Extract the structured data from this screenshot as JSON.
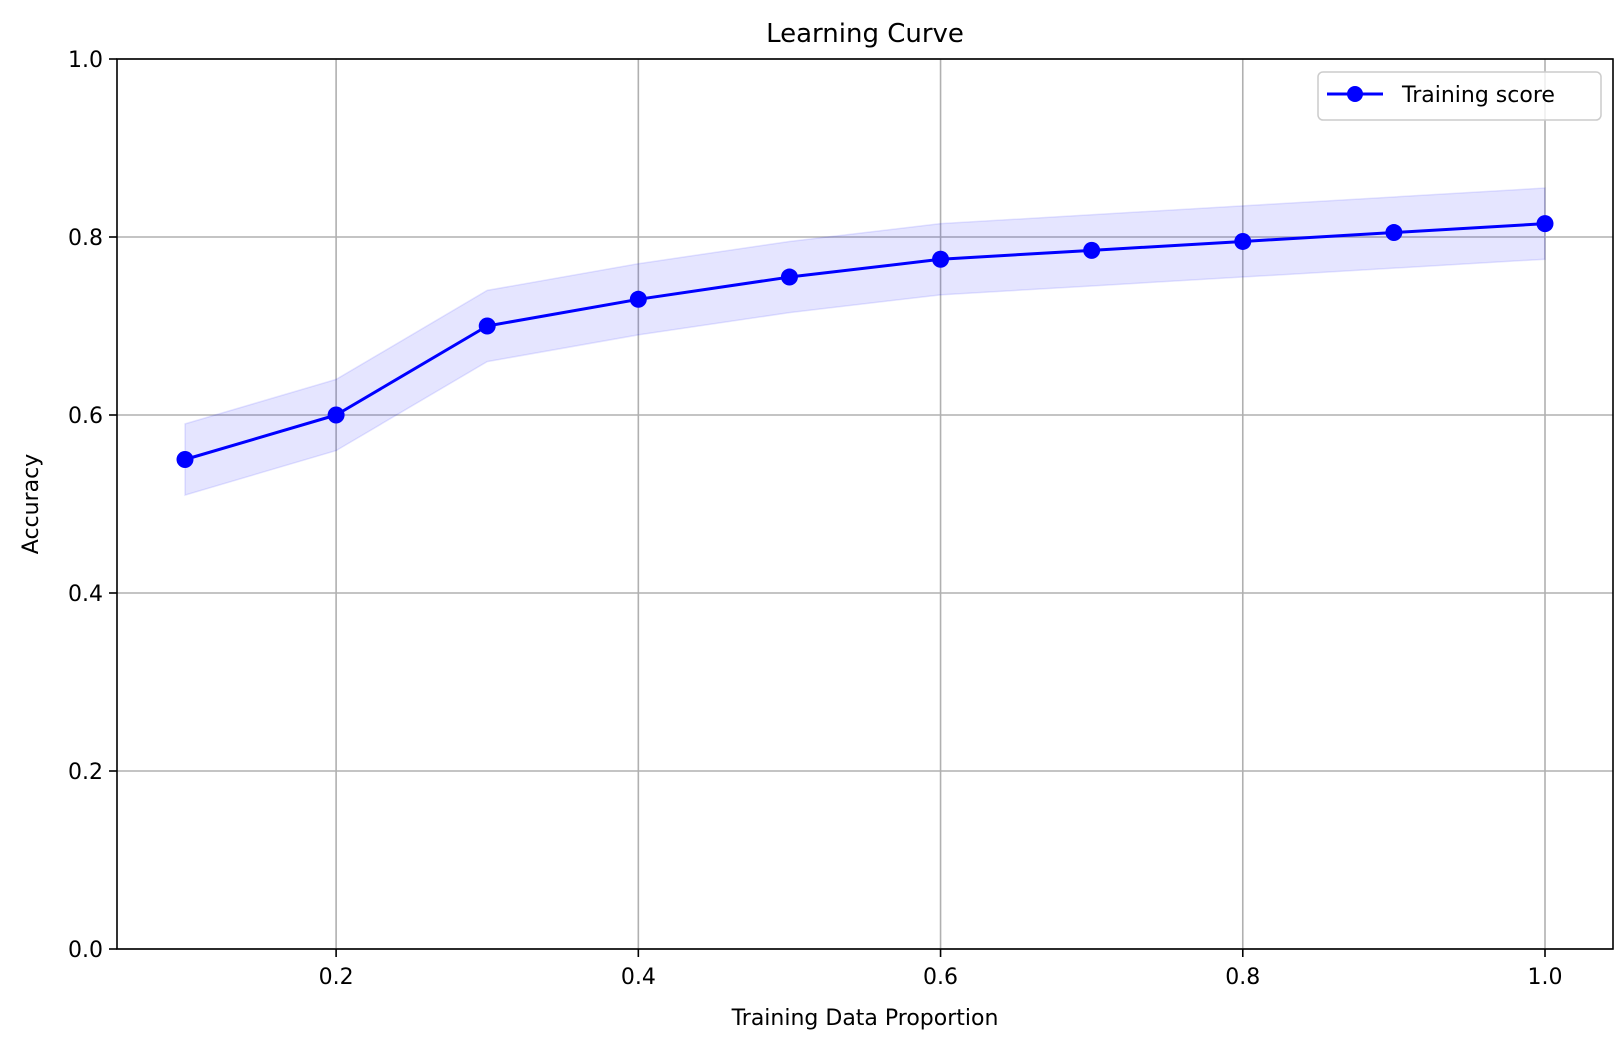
{
  "chart_data": {
    "type": "line",
    "title": "Learning Curve",
    "xlabel": "Training Data Proportion",
    "ylabel": "Accuracy",
    "xlim": [
      0.055,
      1.045
    ],
    "ylim": [
      0.0,
      1.0
    ],
    "x_ticks": [
      0.2,
      0.4,
      0.6,
      0.8,
      1.0
    ],
    "x_tick_labels": [
      "0.2",
      "0.4",
      "0.6",
      "0.8",
      "1.0"
    ],
    "y_ticks": [
      0.0,
      0.2,
      0.4,
      0.6,
      0.8,
      1.0
    ],
    "y_tick_labels": [
      "0.0",
      "0.2",
      "0.4",
      "0.6",
      "0.8",
      "1.0"
    ],
    "grid": true,
    "legend_position": "top-right",
    "series": [
      {
        "name": "Training score",
        "color": "#0000ff",
        "marker": "circle",
        "x": [
          0.1,
          0.2,
          0.3,
          0.4,
          0.5,
          0.6,
          0.7,
          0.8,
          0.9,
          1.0
        ],
        "y": [
          0.55,
          0.6,
          0.7,
          0.73,
          0.755,
          0.775,
          0.785,
          0.795,
          0.805,
          0.815
        ],
        "band_lower": [
          0.51,
          0.56,
          0.66,
          0.69,
          0.715,
          0.735,
          0.745,
          0.755,
          0.765,
          0.775
        ],
        "band_upper": [
          0.59,
          0.64,
          0.74,
          0.77,
          0.795,
          0.815,
          0.825,
          0.835,
          0.845,
          0.855
        ],
        "band_color": "#0000ff",
        "band_opacity": 0.1
      }
    ]
  }
}
